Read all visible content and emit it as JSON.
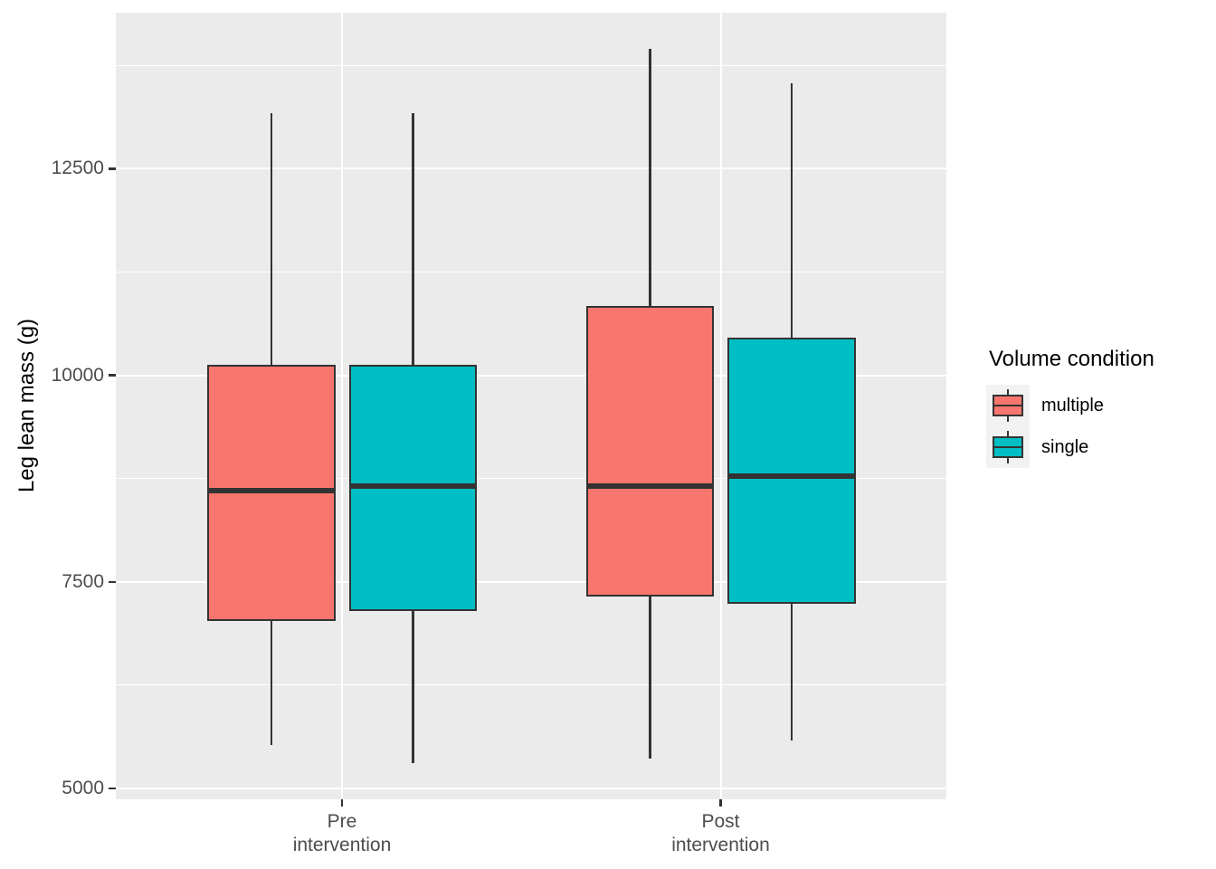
{
  "chart_data": {
    "type": "boxplot",
    "title": "",
    "xlabel": "",
    "ylabel": "Leg lean mass (g)",
    "categories": [
      "Pre\nintervention",
      "Post\nintervention"
    ],
    "ylim": [
      4868,
      14390
    ],
    "y_major_ticks": [
      5000,
      7500,
      10000,
      12500
    ],
    "y_minor_gridlines": [
      6250,
      8750,
      11250,
      13750
    ],
    "grid": "white major+minor horizontal lines, white major vertical line at each category center, gray panel",
    "legend_position": "right",
    "series": [
      {
        "name": "multiple",
        "color": "#F8766D",
        "boxes": [
          {
            "category": "Pre intervention",
            "whisker_low": 5520,
            "q1": 7030,
            "median": 8600,
            "q3": 10130,
            "whisker_high": 13170
          },
          {
            "category": "Post intervention",
            "whisker_low": 5360,
            "q1": 7320,
            "median": 8660,
            "q3": 10840,
            "whisker_high": 13950
          }
        ]
      },
      {
        "name": "single",
        "color": "#00BFC4",
        "boxes": [
          {
            "category": "Pre intervention",
            "whisker_low": 5310,
            "q1": 7150,
            "median": 8660,
            "q3": 10130,
            "whisker_high": 13170
          },
          {
            "category": "Post intervention",
            "whisker_low": 5580,
            "q1": 7230,
            "median": 8780,
            "q3": 10460,
            "whisker_high": 13540
          }
        ]
      }
    ]
  },
  "axes": {
    "y_title": "Leg lean mass (g)",
    "y_tick_labels": [
      "5000",
      "7500",
      "10000",
      "12500"
    ],
    "x_tick_labels": [
      [
        "Pre",
        "intervention"
      ],
      [
        "Post",
        "intervention"
      ]
    ]
  },
  "legend": {
    "title": "Volume condition",
    "items": [
      {
        "label": "multiple",
        "color": "#F8766D"
      },
      {
        "label": "single",
        "color": "#00BFC4"
      }
    ]
  },
  "colors": {
    "panel_bg": "#EBEBEB",
    "gridline": "#FFFFFF",
    "box_border": "#333333",
    "median_line": "#333333",
    "whisker": "#333333",
    "tick_mark": "#333333",
    "tick_text": "#4D4D4D",
    "axis_title_text": "#000000",
    "legend_key_bg": "#F2F2F2",
    "fill_multiple": "#F8766D",
    "fill_single": "#00BFC4"
  }
}
